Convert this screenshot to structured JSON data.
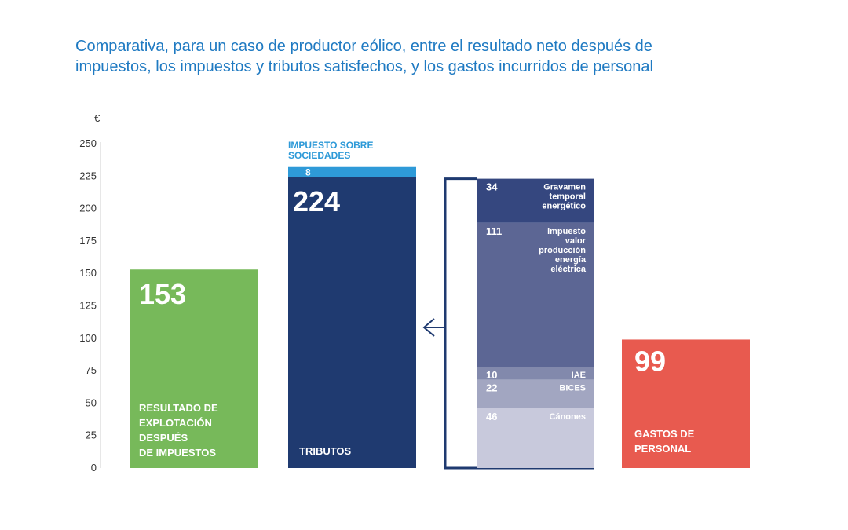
{
  "title_line1": "Comparativa, para un caso de productor eólico, entre el resultado neto después de",
  "title_line2": "impuestos, los impuestos y tributos satisfechos, y los gastos incurridos de personal",
  "colors": {
    "green": "#77b95a",
    "navy": "#1f3a70",
    "light_blue": "#2e9ad8",
    "red": "#e85a4f",
    "title_blue": "#1f7ac2"
  },
  "chart_data": {
    "type": "bar",
    "unit_label": "€",
    "ylim": [
      0,
      250
    ],
    "yticks": [
      0,
      25,
      50,
      75,
      100,
      125,
      150,
      175,
      200,
      225,
      250
    ],
    "grid": false,
    "bars": [
      {
        "key": "resultado",
        "value": 153,
        "value_label": "153",
        "label_lines": [
          "RESULTADO DE",
          "EXPLOTACIÓN",
          "DESPUÉS",
          "DE IMPUESTOS"
        ],
        "color": "#77b95a"
      },
      {
        "key": "tributos",
        "value": 224,
        "value_label": "224",
        "label_lines": [
          "TRIBUTOS"
        ],
        "color": "#1f3a70",
        "top_segment": {
          "value": 8,
          "value_label": "8",
          "label_lines": [
            "IMPUESTO SOBRE",
            "SOCIEDADES"
          ],
          "color": "#2e9ad8"
        }
      },
      {
        "key": "personal",
        "value": 99,
        "value_label": "99",
        "label_lines": [
          "GASTOS DE",
          "PERSONAL"
        ],
        "color": "#e85a4f"
      }
    ],
    "breakdown": {
      "of": "tributos",
      "segments": [
        {
          "value": 34,
          "value_label": "34",
          "label_lines": [
            "Gravamen",
            "temporal",
            "energético"
          ],
          "color": "#35477f"
        },
        {
          "value": 111,
          "value_label": "111",
          "label_lines": [
            "Impuesto",
            "valor",
            "producción",
            "energía",
            "eléctrica"
          ],
          "color": "#5c6694"
        },
        {
          "value": 10,
          "value_label": "10",
          "label_lines": [
            "IAE"
          ],
          "color": "#8289ac"
        },
        {
          "value": 22,
          "value_label": "22",
          "label_lines": [
            "BICES"
          ],
          "color": "#a2a6c1"
        },
        {
          "value": 46,
          "value_label": "46",
          "label_lines": [
            "Cánones"
          ],
          "color": "#c8c9dc"
        }
      ]
    }
  }
}
